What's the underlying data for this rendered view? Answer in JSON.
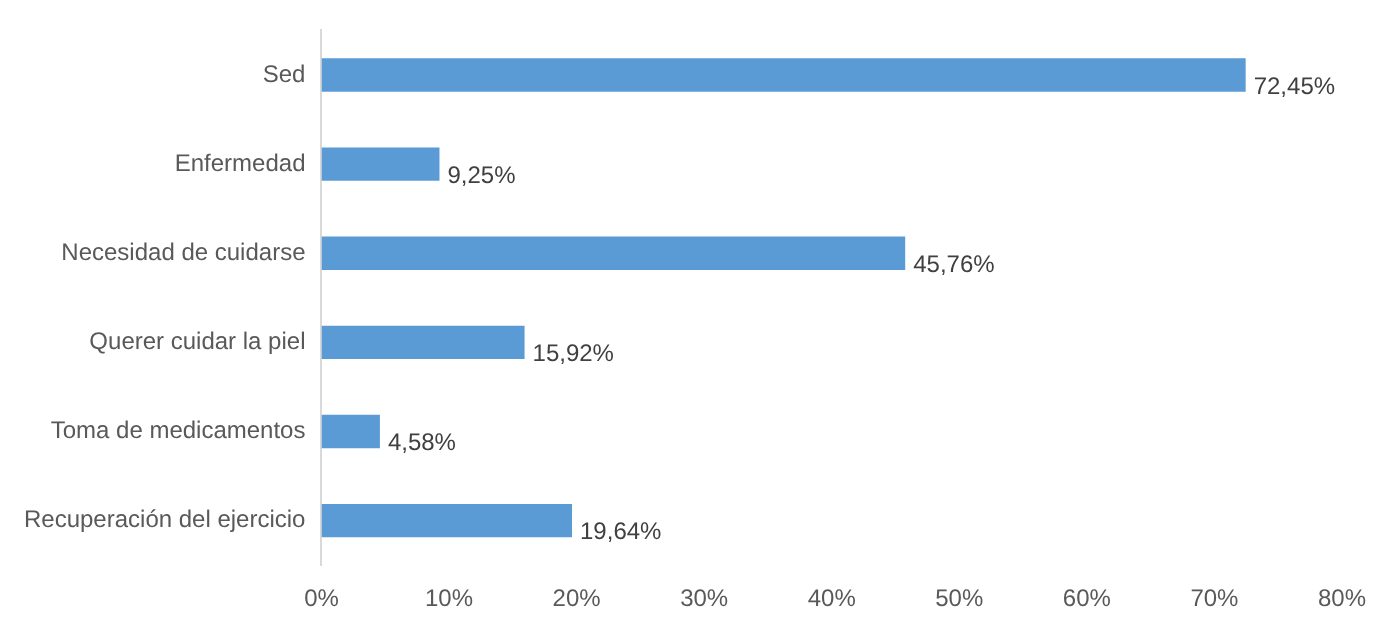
{
  "chart_data": {
    "type": "bar",
    "orientation": "horizontal",
    "categories": [
      "Sed",
      "Enfermedad",
      "Necesidad de cuidarse",
      "Querer cuidar la piel",
      "Toma de medicamentos",
      "Recuperación del ejercicio"
    ],
    "values": [
      72.45,
      9.25,
      45.76,
      15.92,
      4.58,
      19.64
    ],
    "value_labels": [
      "72,45%",
      "9,25%",
      "45,76%",
      "15,92%",
      "4,58%",
      "19,64%"
    ],
    "color": "#5b9bd5",
    "xlim": [
      0,
      80
    ],
    "xticks": [
      {
        "value": 0,
        "label": "0%"
      },
      {
        "value": 10,
        "label": "10%"
      },
      {
        "value": 20,
        "label": "20%"
      },
      {
        "value": 30,
        "label": "30%"
      },
      {
        "value": 40,
        "label": "40%"
      },
      {
        "value": 50,
        "label": "50%"
      },
      {
        "value": 60,
        "label": "60%"
      },
      {
        "value": 70,
        "label": "70%"
      },
      {
        "value": 80,
        "label": "80%"
      }
    ],
    "grid": false,
    "legend": false
  }
}
